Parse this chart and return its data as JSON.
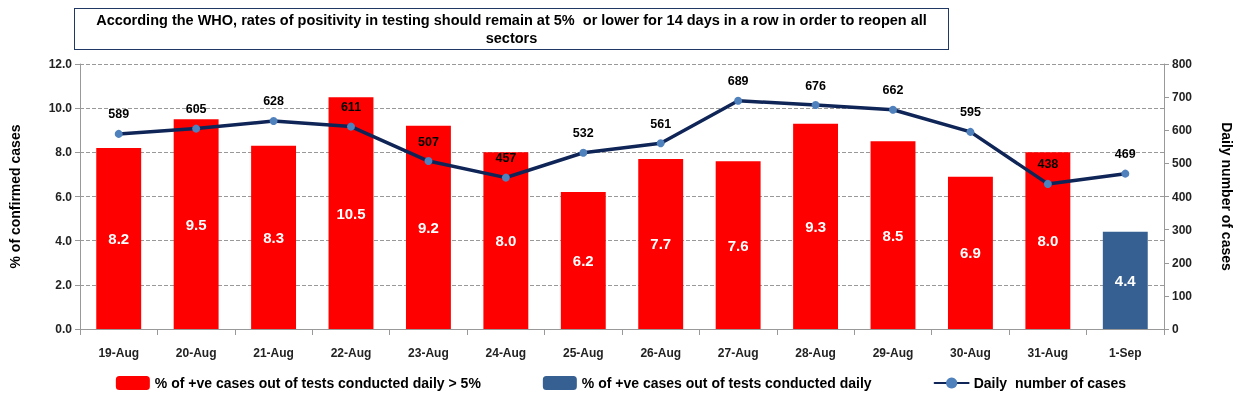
{
  "chart_data": {
    "type": "bar",
    "title": "According the WHO, rates of positivity in testing should remain at 5%  or lower for 14 days in a row in order to reopen all sectors",
    "ylabel": "% of confirmed cases",
    "y2label": "Daily number of cases",
    "categories": [
      "19-Aug",
      "20-Aug",
      "21-Aug",
      "22-Aug",
      "23-Aug",
      "24-Aug",
      "25-Aug",
      "26-Aug",
      "27-Aug",
      "28-Aug",
      "29-Aug",
      "30-Aug",
      "31-Aug",
      "1-Sep"
    ],
    "series": [
      {
        "name": "% of +ve cases out of tests conducted daily > 5%",
        "color": "#ff0000",
        "values": [
          8.2,
          9.5,
          8.3,
          10.5,
          9.2,
          8.0,
          6.2,
          7.7,
          7.6,
          9.3,
          8.5,
          6.9,
          8.0,
          null
        ],
        "value_labels": [
          "8.2",
          "9.5",
          "8.3",
          "10.5",
          "9.2",
          "8.0",
          "6.2",
          "7.7",
          "7.6",
          "9.3",
          "8.5",
          "6.9",
          "8.0",
          null
        ]
      },
      {
        "name": "% of +ve cases out of tests conducted daily",
        "color": "#376092",
        "values": [
          null,
          null,
          null,
          null,
          null,
          null,
          null,
          null,
          null,
          null,
          null,
          null,
          null,
          4.4
        ],
        "value_labels": [
          null,
          null,
          null,
          null,
          null,
          null,
          null,
          null,
          null,
          null,
          null,
          null,
          null,
          "4.4"
        ]
      },
      {
        "name": "Daily  number of cases",
        "type": "line",
        "axis": "y2",
        "color": "#0f2557",
        "colors": [
          "#4f81bd",
          "#4f81bd",
          "#4f81bd",
          "#4f81bd",
          "#4f81bd",
          "#4f81bd",
          "#4f81bd",
          "#4f81bd",
          "#4f81bd",
          "#4f81bd",
          "#4f81bd",
          "#4f81bd",
          "#4f81bd",
          "#4f81bd"
        ],
        "values": [
          589,
          605,
          628,
          611,
          507,
          457,
          532,
          561,
          689,
          676,
          662,
          595,
          438,
          469
        ],
        "value_labels": [
          "589",
          "605",
          "628",
          "611",
          "507",
          "457",
          "532",
          "561",
          "689",
          "676",
          "662",
          "595",
          "438",
          "469"
        ]
      }
    ],
    "ylim": [
      0,
      12
    ],
    "yticks": [
      {
        "value": 0,
        "label": "0.0"
      },
      {
        "value": 2,
        "label": "2.0"
      },
      {
        "value": 4,
        "label": "4.0"
      },
      {
        "value": 6,
        "label": "6.0"
      },
      {
        "value": 8,
        "label": "8.0"
      },
      {
        "value": 10,
        "label": "10.0"
      },
      {
        "value": 12,
        "label": "12.0"
      }
    ],
    "y2lim": [
      0,
      800
    ],
    "y2ticks": [
      0,
      100,
      200,
      300,
      400,
      500,
      600,
      700,
      800
    ],
    "grid": "y",
    "legend": "bottom",
    "marker": "circle",
    "line_style": "solid"
  }
}
